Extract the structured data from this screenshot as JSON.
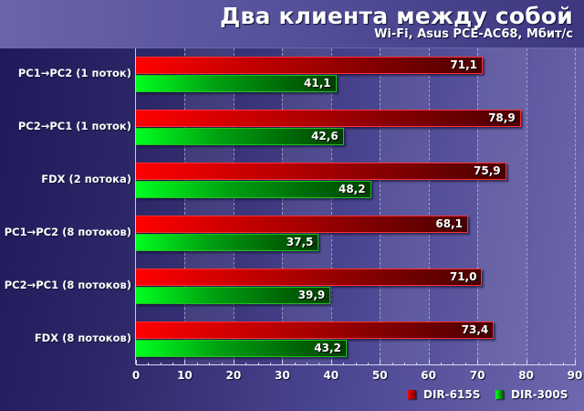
{
  "header": {
    "title": "Два клиента между собой",
    "subtitle": "Wi-Fi, Asus PCE-AC68, Мбит/с"
  },
  "colors": {
    "dir615s": "#e00000",
    "dir300s": "#00d020",
    "background": "#2c2766"
  },
  "legend": {
    "items": [
      {
        "label": "DIR-615S",
        "color": "#e00000"
      },
      {
        "label": "DIR-300S",
        "color": "#00d020"
      }
    ]
  },
  "axis": {
    "ticks": [
      "0",
      "10",
      "20",
      "30",
      "40",
      "50",
      "60",
      "70",
      "80",
      "90"
    ]
  },
  "chart_data": {
    "type": "bar",
    "orientation": "horizontal",
    "title": "Два клиента между собой",
    "subtitle": "Wi-Fi, Asus PCE-AC68, Мбит/с",
    "xlabel": "",
    "ylabel": "",
    "xlim": [
      0,
      90
    ],
    "grid": true,
    "legend_position": "bottom-right",
    "categories": [
      "PC1→PC2 (1 поток)",
      "PC2→PC1 (1 поток)",
      "FDX (2 потока)",
      "PC1→PC2 (8 потоков)",
      "PC2→PC1 (8 потоков)",
      "FDX (8 потоков)"
    ],
    "series": [
      {
        "name": "DIR-615S",
        "values": [
          71.1,
          78.9,
          75.9,
          68.1,
          71.0,
          73.4
        ],
        "labels": [
          "71,1",
          "78,9",
          "75,9",
          "68,1",
          "71,0",
          "73,4"
        ]
      },
      {
        "name": "DIR-300S",
        "values": [
          41.1,
          42.6,
          48.2,
          37.5,
          39.9,
          43.2
        ],
        "labels": [
          "41,1",
          "42,6",
          "48,2",
          "37,5",
          "39,9",
          "43,2"
        ]
      }
    ]
  }
}
